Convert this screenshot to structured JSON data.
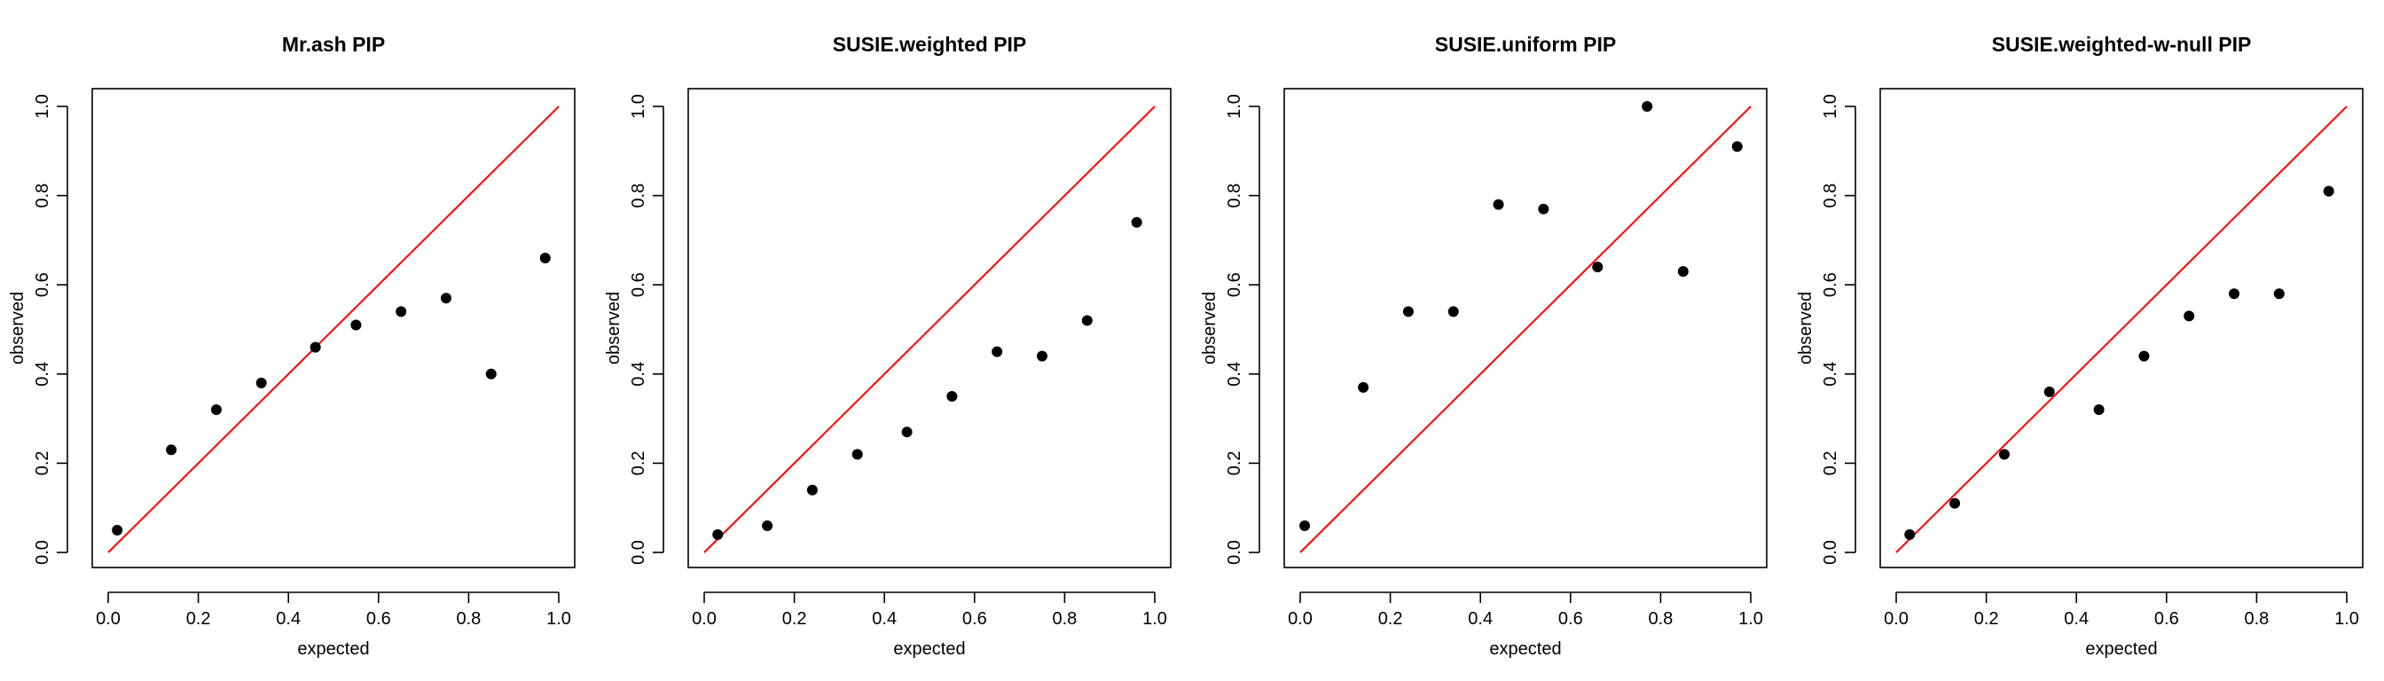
{
  "chart_data": [
    {
      "type": "scatter",
      "title": "Mr.ash PIP",
      "xlabel": "expected",
      "ylabel": "observed",
      "xlim": [
        0,
        1
      ],
      "ylim": [
        0,
        1
      ],
      "xticks": [
        "0.0",
        "0.2",
        "0.4",
        "0.6",
        "0.8",
        "1.0"
      ],
      "yticks": [
        "0.0",
        "0.2",
        "0.4",
        "0.6",
        "0.8",
        "1.0"
      ],
      "reference_line": {
        "from": [
          0,
          0
        ],
        "to": [
          1,
          1
        ],
        "color": "#ff0000"
      },
      "point_color": "#000000",
      "x": [
        0.02,
        0.14,
        0.24,
        0.34,
        0.46,
        0.55,
        0.65,
        0.75,
        0.85,
        0.97
      ],
      "y": [
        0.05,
        0.23,
        0.32,
        0.38,
        0.46,
        0.51,
        0.54,
        0.57,
        0.4,
        0.66
      ]
    },
    {
      "type": "scatter",
      "title": "SUSIE.weighted PIP",
      "xlabel": "expected",
      "ylabel": "observed",
      "xlim": [
        0,
        1
      ],
      "ylim": [
        0,
        1
      ],
      "xticks": [
        "0.0",
        "0.2",
        "0.4",
        "0.6",
        "0.8",
        "1.0"
      ],
      "yticks": [
        "0.0",
        "0.2",
        "0.4",
        "0.6",
        "0.8",
        "1.0"
      ],
      "reference_line": {
        "from": [
          0,
          0
        ],
        "to": [
          1,
          1
        ],
        "color": "#ff0000"
      },
      "point_color": "#000000",
      "x": [
        0.03,
        0.14,
        0.24,
        0.34,
        0.45,
        0.55,
        0.65,
        0.75,
        0.85,
        0.96
      ],
      "y": [
        0.04,
        0.06,
        0.14,
        0.22,
        0.27,
        0.35,
        0.45,
        0.44,
        0.52,
        0.74
      ]
    },
    {
      "type": "scatter",
      "title": "SUSIE.uniform PIP",
      "xlabel": "expected",
      "ylabel": "observed",
      "xlim": [
        0,
        1
      ],
      "ylim": [
        0,
        1
      ],
      "xticks": [
        "0.0",
        "0.2",
        "0.4",
        "0.6",
        "0.8",
        "1.0"
      ],
      "yticks": [
        "0.0",
        "0.2",
        "0.4",
        "0.6",
        "0.8",
        "1.0"
      ],
      "reference_line": {
        "from": [
          0,
          0
        ],
        "to": [
          1,
          1
        ],
        "color": "#ff0000"
      },
      "point_color": "#000000",
      "x": [
        0.01,
        0.14,
        0.24,
        0.34,
        0.44,
        0.54,
        0.66,
        0.77,
        0.85,
        0.97
      ],
      "y": [
        0.06,
        0.37,
        0.54,
        0.54,
        0.78,
        0.77,
        0.64,
        1.0,
        0.63,
        0.91
      ]
    },
    {
      "type": "scatter",
      "title": "SUSIE.weighted-w-null PIP",
      "xlabel": "expected",
      "ylabel": "observed",
      "xlim": [
        0,
        1
      ],
      "ylim": [
        0,
        1
      ],
      "xticks": [
        "0.0",
        "0.2",
        "0.4",
        "0.6",
        "0.8",
        "1.0"
      ],
      "yticks": [
        "0.0",
        "0.2",
        "0.4",
        "0.6",
        "0.8",
        "1.0"
      ],
      "reference_line": {
        "from": [
          0,
          0
        ],
        "to": [
          1,
          1
        ],
        "color": "#ff0000"
      },
      "point_color": "#000000",
      "x": [
        0.03,
        0.13,
        0.24,
        0.34,
        0.45,
        0.55,
        0.65,
        0.75,
        0.85,
        0.96
      ],
      "y": [
        0.04,
        0.11,
        0.22,
        0.36,
        0.32,
        0.44,
        0.53,
        0.58,
        0.58,
        0.81
      ]
    }
  ]
}
